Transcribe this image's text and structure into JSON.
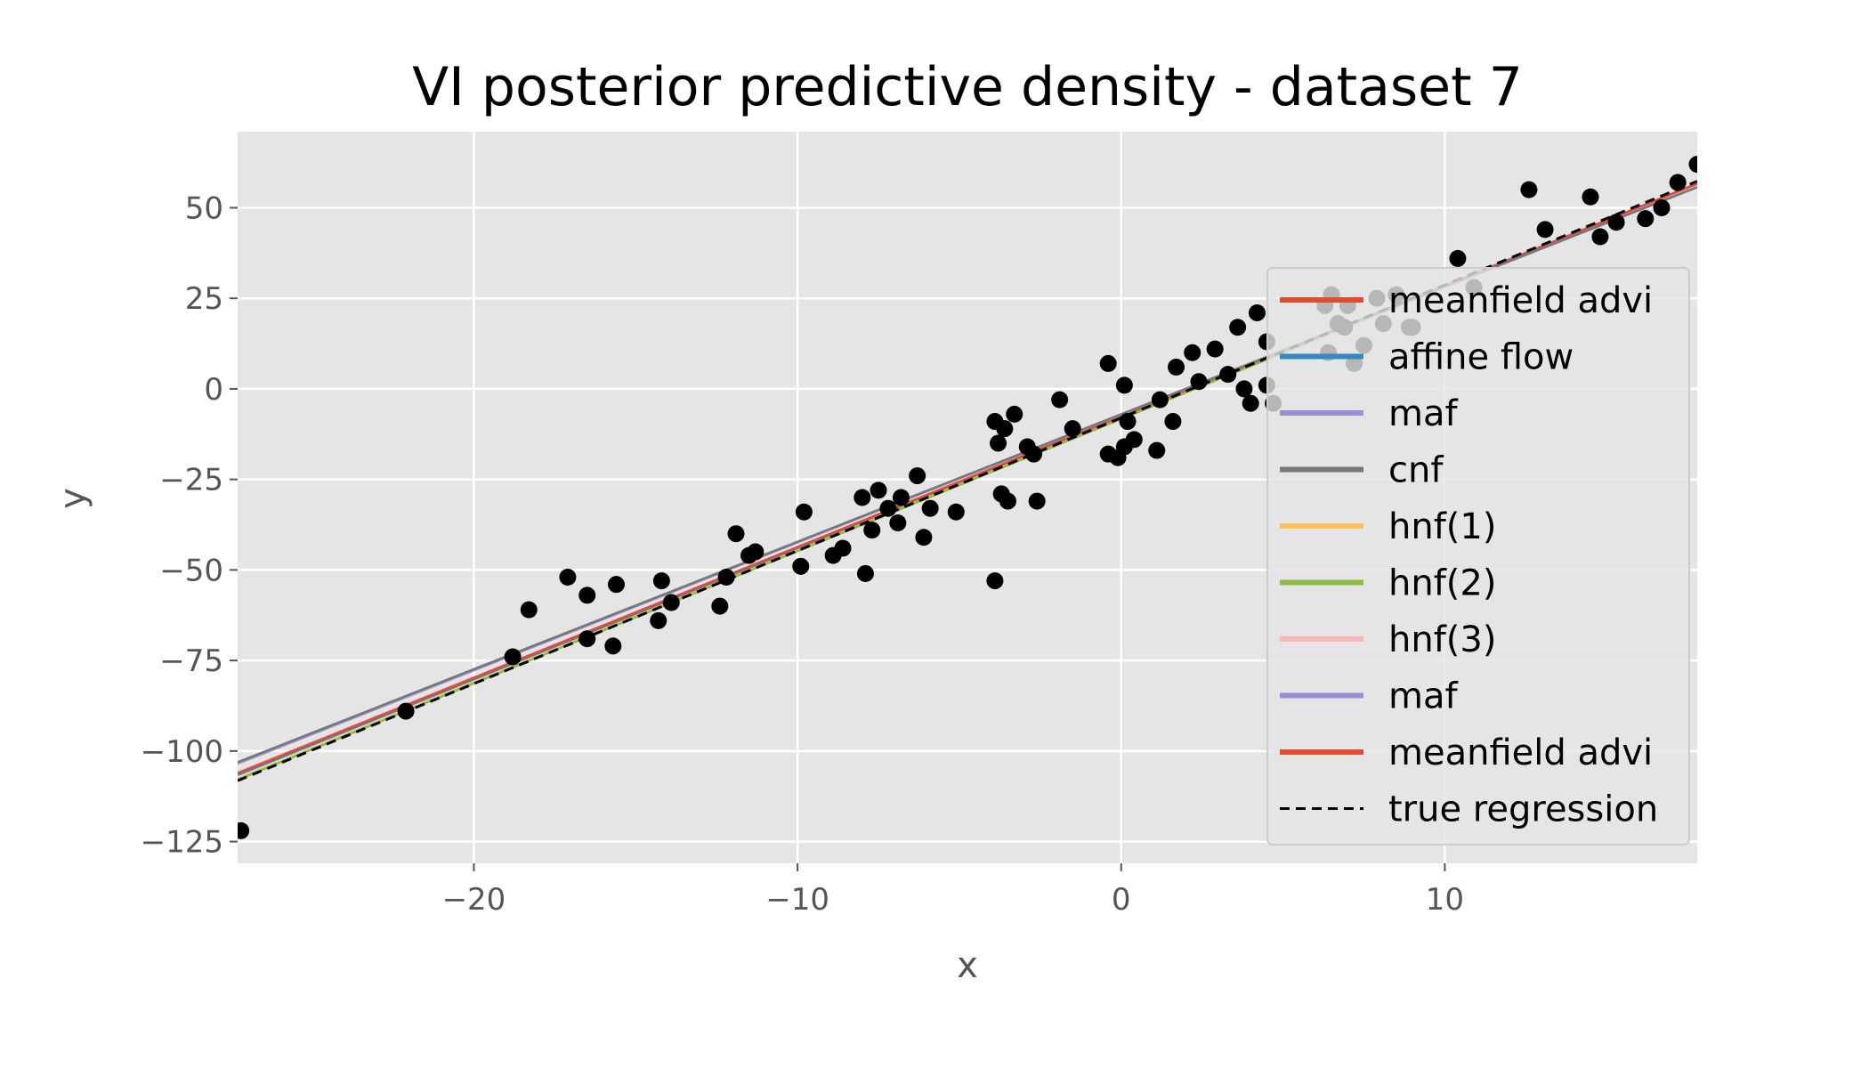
{
  "chart_data": {
    "type": "scatter",
    "title": "VI posterior predictive density - dataset 7",
    "xlabel": "x",
    "ylabel": "y",
    "xlim": [
      -27.3,
      17.8
    ],
    "ylim": [
      -131,
      71
    ],
    "xticks": [
      -20,
      -10,
      0,
      10
    ],
    "yticks": [
      50,
      25,
      0,
      -25,
      -50,
      -75,
      -100,
      -125
    ],
    "xtick_labels": [
      "−20",
      "−10",
      "0",
      "10"
    ],
    "ytick_labels": [
      "50",
      "25",
      "0",
      "−25",
      "−50",
      "−75",
      "−100",
      "−125"
    ],
    "grid": true,
    "background": "#e5e5e5",
    "legend_position": "center-right",
    "points": {
      "color": "#000000",
      "x": [
        -27.2,
        -22.1,
        -18.8,
        -18.3,
        -17.1,
        -16.5,
        -16.5,
        -15.7,
        -15.6,
        -14.3,
        -14.2,
        -13.9,
        -12.4,
        -12.2,
        -11.9,
        -11.5,
        -11.3,
        -9.9,
        -9.8,
        -8.9,
        -8.6,
        -8.0,
        -7.9,
        -7.7,
        -7.5,
        -7.2,
        -6.9,
        -6.8,
        -6.3,
        -6.1,
        -5.9,
        -5.1,
        -3.9,
        -3.9,
        -3.8,
        -3.7,
        -3.6,
        -3.5,
        -3.3,
        -2.9,
        -2.7,
        -2.6,
        -1.9,
        -1.5,
        -0.4,
        -0.4,
        -0.1,
        0.1,
        0.1,
        0.2,
        0.4,
        1.1,
        1.2,
        1.6,
        1.7,
        2.2,
        2.4,
        2.9,
        3.3,
        3.6,
        3.8,
        4.0,
        4.2,
        4.5,
        4.5,
        4.7,
        6.3,
        6.4,
        6.5,
        6.7,
        6.9,
        7.0,
        7.2,
        7.5,
        7.9,
        8.1,
        8.5,
        8.9,
        9.0,
        10.4,
        10.9,
        12.6,
        13.1,
        14.5,
        14.8,
        15.3,
        16.2,
        16.7,
        17.2,
        17.8
      ],
      "y": [
        -122,
        -89,
        -74,
        -61,
        -52,
        -57,
        -69,
        -71,
        -54,
        -64,
        -53,
        -59,
        -60,
        -52,
        -40,
        -46,
        -45,
        -49,
        -34,
        -46,
        -44,
        -30,
        -51,
        -39,
        -28,
        -33,
        -37,
        -30,
        -24,
        -41,
        -33,
        -34,
        -53,
        -9,
        -15,
        -29,
        -11,
        -31,
        -7,
        -16,
        -18,
        -31,
        -3,
        -11,
        7,
        -18,
        -19,
        -16,
        1,
        -9,
        -14,
        -17,
        -3,
        -9,
        6,
        10,
        2,
        11,
        4,
        17,
        0,
        -4,
        21,
        13,
        1,
        -4,
        23,
        10,
        26,
        18,
        17,
        23,
        7,
        12,
        25,
        18,
        26,
        17,
        17,
        36,
        28,
        55,
        44,
        53,
        42,
        46,
        47,
        50,
        57,
        62
      ]
    },
    "series": [
      {
        "name": "meanfield advi",
        "color": "#e24a33",
        "slope": 3.61,
        "intercept": -7.6
      },
      {
        "name": "affine flow",
        "color": "#348abd",
        "slope": 3.62,
        "intercept": -7.8
      },
      {
        "name": "maf",
        "color": "#988ed5",
        "slope": 3.53,
        "intercept": -7.1
      },
      {
        "name": "cnf",
        "color": "#777777",
        "slope": 3.52,
        "intercept": -7.0
      },
      {
        "name": "hnf(1)",
        "color": "#fbc15e",
        "slope": 3.64,
        "intercept": -8.2
      },
      {
        "name": "hnf(2)",
        "color": "#8eba42",
        "slope": 3.65,
        "intercept": -8.3
      },
      {
        "name": "hnf(3)",
        "color": "#ffb5b8",
        "slope": 3.6,
        "intercept": -7.6
      },
      {
        "name": "maf",
        "color": "#988ed5",
        "slope": 3.53,
        "intercept": -7.1
      },
      {
        "name": "meanfield advi",
        "color": "#e24a33",
        "slope": 3.61,
        "intercept": -7.6
      },
      {
        "name": "true regression",
        "color": "#000000",
        "dashed": true,
        "slope": 3.67,
        "intercept": -8.0
      }
    ]
  }
}
